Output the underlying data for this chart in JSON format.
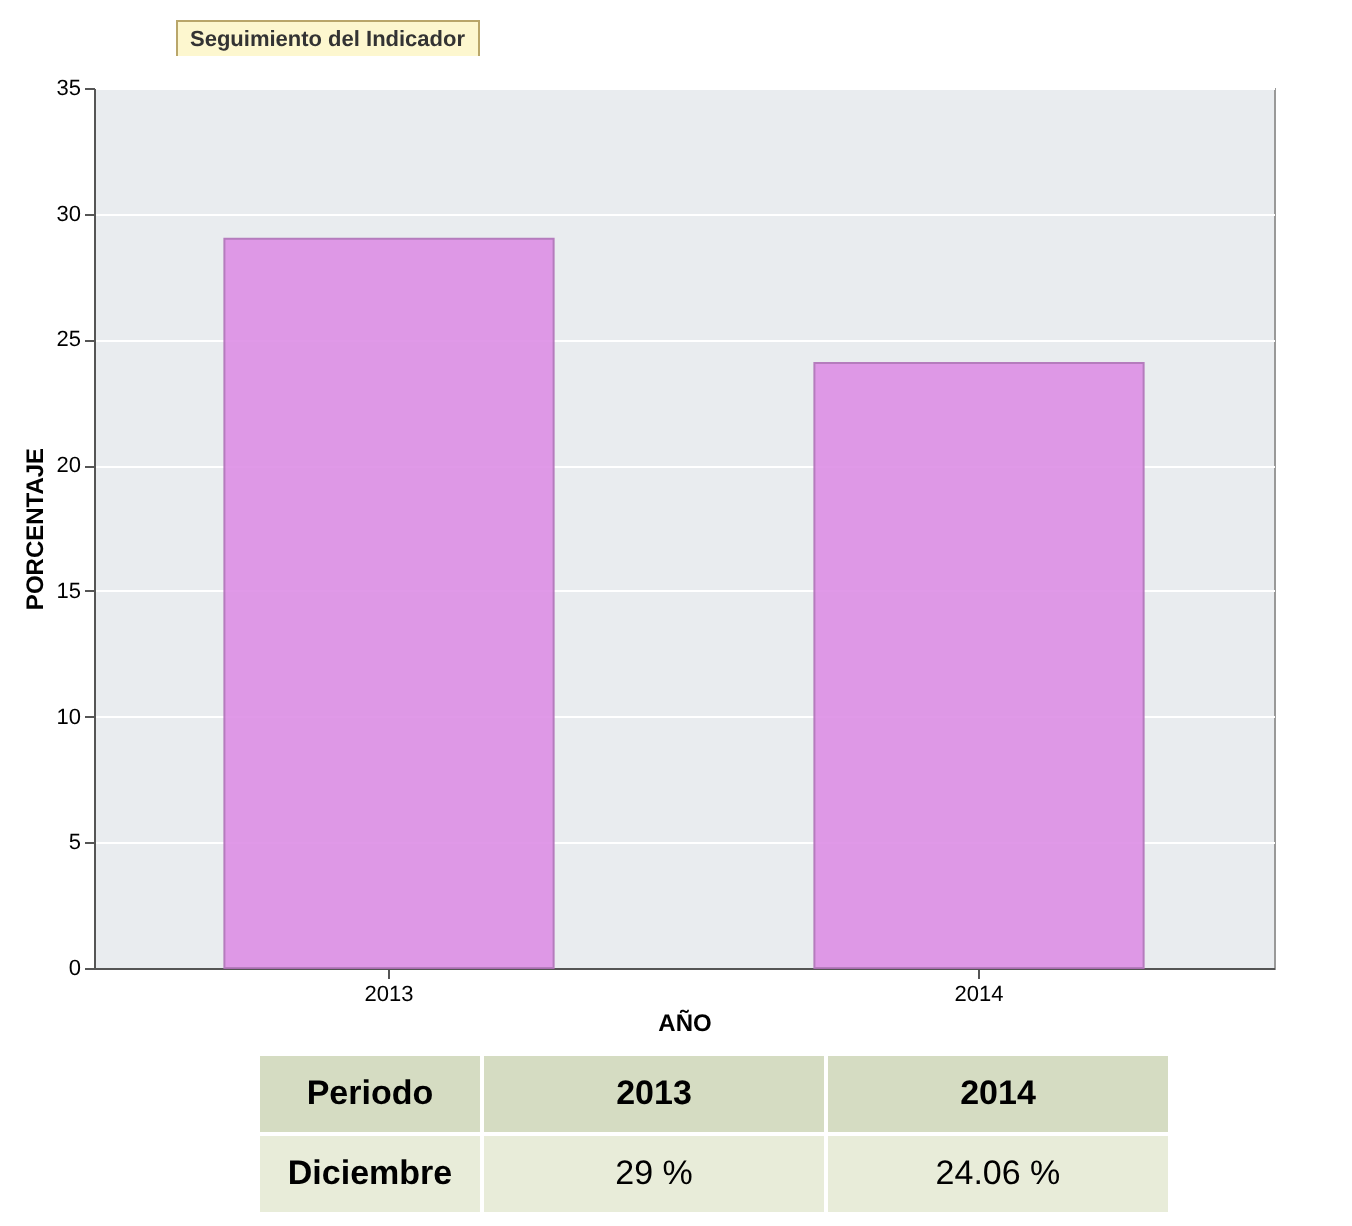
{
  "chart_data": {
    "type": "bar",
    "title": "Seguimiento del Indicador",
    "xlabel": "AÑO",
    "ylabel": "PORCENTAJE",
    "categories": [
      "2013",
      "2014"
    ],
    "values": [
      29,
      24.06
    ],
    "color": "#dd8fe6",
    "value_labels": [
      "29 %",
      "24.06 %"
    ],
    "annotations": [
      "Periodo",
      "Diciembre"
    ],
    "ylim": [
      0,
      35
    ],
    "yticks": [
      0,
      5,
      10,
      15,
      20,
      25,
      30,
      35
    ],
    "grid": "y"
  }
}
